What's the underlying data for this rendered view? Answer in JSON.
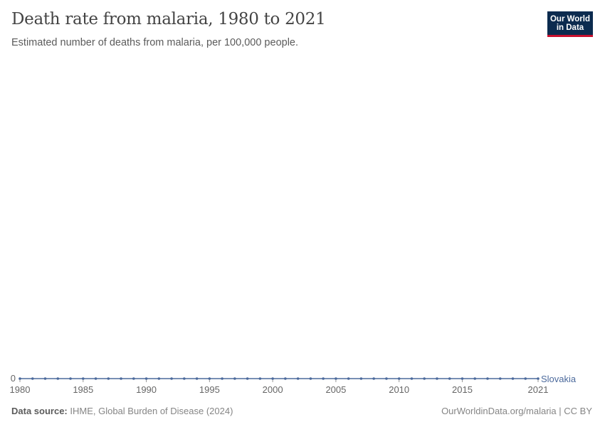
{
  "header": {
    "title": "Death rate from malaria, 1980 to 2021",
    "subtitle": "Estimated number of deaths from malaria, per 100,000 people.",
    "logo_line1": "Our World",
    "logo_line2": "in Data"
  },
  "footer": {
    "source_label": "Data source:",
    "source": "IHME, Global Burden of Disease (2024)",
    "link": "OurWorldinData.org/malaria | CC BY"
  },
  "chart_data": {
    "type": "line",
    "title": "Death rate from malaria, 1980 to 2021",
    "subtitle": "Estimated number of deaths from malaria, per 100,000 people.",
    "x": [
      1980,
      1981,
      1982,
      1983,
      1984,
      1985,
      1986,
      1987,
      1988,
      1989,
      1990,
      1991,
      1992,
      1993,
      1994,
      1995,
      1996,
      1997,
      1998,
      1999,
      2000,
      2001,
      2002,
      2003,
      2004,
      2005,
      2006,
      2007,
      2008,
      2009,
      2010,
      2011,
      2012,
      2013,
      2014,
      2015,
      2016,
      2017,
      2018,
      2019,
      2020,
      2021
    ],
    "series": [
      {
        "name": "Slovakia",
        "color": "#4c6a9c",
        "values": [
          0,
          0,
          0,
          0,
          0,
          0,
          0,
          0,
          0,
          0,
          0,
          0,
          0,
          0,
          0,
          0,
          0,
          0,
          0,
          0,
          0,
          0,
          0,
          0,
          0,
          0,
          0,
          0,
          0,
          0,
          0,
          0,
          0,
          0,
          0,
          0,
          0,
          0,
          0,
          0,
          0,
          0
        ]
      }
    ],
    "xticks": [
      1980,
      1985,
      1990,
      1995,
      2000,
      2005,
      2010,
      2015,
      2021
    ],
    "yticks": [
      0
    ],
    "xlim": [
      1980,
      2021
    ],
    "ylim": [
      0,
      1
    ],
    "grid": false,
    "legend": "right-end-label"
  }
}
